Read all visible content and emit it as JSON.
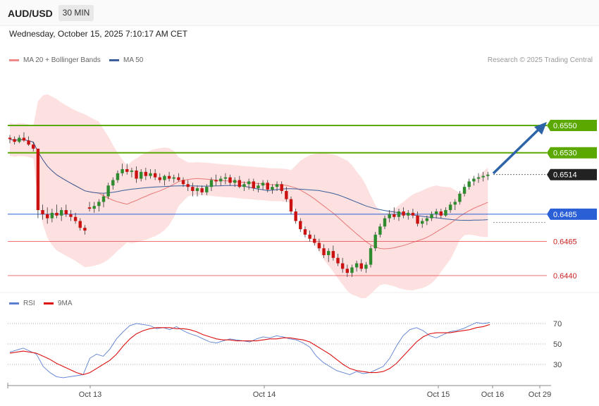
{
  "header": {
    "symbol": "AUD/USD",
    "timeframe": "30 MIN",
    "datetime": "Wednesday, October 15, 2025 7:10:17 AM CET",
    "credit": "Research © 2025 Trading Central"
  },
  "legend": {
    "ma20_label": "MA 20 + Bollinger Bands",
    "ma50_label": "MA 50",
    "rsi_label": "RSI",
    "rsi_ma_label": "9MA"
  },
  "colors": {
    "bull": "#2e8b2e",
    "bear": "#cc1111",
    "band_fill": "#fde0e0",
    "ma20": "#e87878",
    "ma50": "#3a5f9a",
    "resistance": "#5aa800",
    "pivot": "#2a5fd6",
    "support": "#e84040",
    "current": "#222222",
    "arrow": "#2d64a8",
    "rsi": "#5b7fd0",
    "rsi_ma": "#dd1010"
  },
  "chart_data": [
    {
      "type": "candlestick",
      "title": "AUD/USD",
      "interval": "30 MIN",
      "y_unit": "price",
      "y_range": [
        0.643,
        0.6575
      ],
      "x_ticks": [
        "Oct 13",
        "Oct 14",
        "Oct 15",
        "Oct 16",
        "Oct 29"
      ],
      "candles_ohlc": [
        [
          0.6541,
          0.6543,
          0.6537,
          0.654
        ],
        [
          0.654,
          0.6542,
          0.6536,
          0.6538
        ],
        [
          0.6538,
          0.6543,
          0.6537,
          0.6541
        ],
        [
          0.6541,
          0.6545,
          0.6538,
          0.6539
        ],
        [
          0.6539,
          0.6542,
          0.6535,
          0.6536
        ],
        [
          0.6536,
          0.6538,
          0.6531,
          0.6533
        ],
        [
          0.6533,
          0.6533,
          0.6482,
          0.6488
        ],
        [
          0.6488,
          0.6492,
          0.6481,
          0.6485
        ],
        [
          0.6485,
          0.649,
          0.6478,
          0.6482
        ],
        [
          0.6482,
          0.6489,
          0.6479,
          0.6486
        ],
        [
          0.6486,
          0.6492,
          0.6482,
          0.6484
        ],
        [
          0.6484,
          0.649,
          0.648,
          0.6488
        ],
        [
          0.6488,
          0.6492,
          0.6483,
          0.6485
        ],
        [
          0.6485,
          0.6488,
          0.648,
          0.6483
        ],
        [
          0.6483,
          0.6486,
          0.6478,
          0.648
        ],
        [
          0.648,
          0.6482,
          0.6473,
          0.6475
        ],
        [
          0.6475,
          0.6477,
          0.647,
          0.6473
        ],
        [
          0.649,
          0.6494,
          0.6487,
          0.6489
        ],
        [
          0.6489,
          0.6494,
          0.6486,
          0.6491
        ],
        [
          0.6491,
          0.6496,
          0.6487,
          0.6494
        ],
        [
          0.6494,
          0.65,
          0.649,
          0.6498
        ],
        [
          0.6498,
          0.6508,
          0.6496,
          0.6506
        ],
        [
          0.6506,
          0.6512,
          0.6503,
          0.651
        ],
        [
          0.651,
          0.6517,
          0.6508,
          0.6515
        ],
        [
          0.6515,
          0.6522,
          0.6513,
          0.6518
        ],
        [
          0.6518,
          0.6522,
          0.6514,
          0.6516
        ],
        [
          0.6516,
          0.6519,
          0.6512,
          0.6517
        ],
        [
          0.6517,
          0.652,
          0.6508,
          0.6511
        ],
        [
          0.6511,
          0.6518,
          0.6509,
          0.6516
        ],
        [
          0.6516,
          0.6519,
          0.651,
          0.6513
        ],
        [
          0.6513,
          0.6518,
          0.6511,
          0.6515
        ],
        [
          0.6515,
          0.6518,
          0.651,
          0.6512
        ],
        [
          0.6512,
          0.6515,
          0.6508,
          0.651
        ],
        [
          0.651,
          0.6514,
          0.6506,
          0.6513
        ],
        [
          0.6513,
          0.6516,
          0.6509,
          0.6511
        ],
        [
          0.6511,
          0.6514,
          0.6508,
          0.6512
        ],
        [
          0.6512,
          0.6515,
          0.6509,
          0.651
        ],
        [
          0.651,
          0.6512,
          0.6505,
          0.6507
        ],
        [
          0.6507,
          0.651,
          0.6502,
          0.6505
        ],
        [
          0.6505,
          0.6508,
          0.6498,
          0.6502
        ],
        [
          0.6502,
          0.6506,
          0.6498,
          0.6504
        ],
        [
          0.6504,
          0.6506,
          0.6499,
          0.6501
        ],
        [
          0.6501,
          0.6507,
          0.6499,
          0.6505
        ],
        [
          0.6505,
          0.6512,
          0.6502,
          0.651
        ],
        [
          0.651,
          0.6514,
          0.6506,
          0.6509
        ],
        [
          0.6509,
          0.6513,
          0.6506,
          0.6511
        ],
        [
          0.6511,
          0.6515,
          0.6507,
          0.6512
        ],
        [
          0.6512,
          0.6514,
          0.6506,
          0.6508
        ],
        [
          0.6508,
          0.6512,
          0.6505,
          0.651
        ],
        [
          0.651,
          0.6513,
          0.6504,
          0.6505
        ],
        [
          0.6505,
          0.6509,
          0.6502,
          0.6507
        ],
        [
          0.6507,
          0.6511,
          0.6503,
          0.6509
        ],
        [
          0.6509,
          0.6511,
          0.6502,
          0.6504
        ],
        [
          0.6504,
          0.6508,
          0.6501,
          0.6506
        ],
        [
          0.6506,
          0.651,
          0.6503,
          0.6508
        ],
        [
          0.6508,
          0.651,
          0.6501,
          0.6503
        ],
        [
          0.6503,
          0.6507,
          0.65,
          0.6505
        ],
        [
          0.6505,
          0.6509,
          0.6502,
          0.6507
        ],
        [
          0.6507,
          0.6509,
          0.65,
          0.6502
        ],
        [
          0.6502,
          0.6505,
          0.6494,
          0.6496
        ],
        [
          0.6496,
          0.6498,
          0.6485,
          0.6487
        ],
        [
          0.6487,
          0.6489,
          0.6478,
          0.648
        ],
        [
          0.648,
          0.6482,
          0.6472,
          0.6474
        ],
        [
          0.6474,
          0.6476,
          0.6468,
          0.647
        ],
        [
          0.647,
          0.6473,
          0.6465,
          0.6467
        ],
        [
          0.6467,
          0.647,
          0.6462,
          0.6464
        ],
        [
          0.6464,
          0.6467,
          0.6458,
          0.646
        ],
        [
          0.646,
          0.6463,
          0.6453,
          0.6455
        ],
        [
          0.6455,
          0.646,
          0.645,
          0.6458
        ],
        [
          0.6458,
          0.6462,
          0.6451,
          0.6453
        ],
        [
          0.6453,
          0.6456,
          0.6447,
          0.6449
        ],
        [
          0.6449,
          0.6453,
          0.6442,
          0.6445
        ],
        [
          0.6445,
          0.6448,
          0.6439,
          0.6442
        ],
        [
          0.6442,
          0.6448,
          0.6439,
          0.6446
        ],
        [
          0.6446,
          0.6451,
          0.6443,
          0.6449
        ],
        [
          0.6449,
          0.6452,
          0.6443,
          0.6445
        ],
        [
          0.6445,
          0.645,
          0.6442,
          0.6448
        ],
        [
          0.6448,
          0.6462,
          0.6446,
          0.646
        ],
        [
          0.646,
          0.6472,
          0.6458,
          0.647
        ],
        [
          0.647,
          0.6478,
          0.6468,
          0.6476
        ],
        [
          0.6476,
          0.6484,
          0.6474,
          0.6482
        ],
        [
          0.6482,
          0.6488,
          0.6479,
          0.6485
        ],
        [
          0.6485,
          0.649,
          0.6481,
          0.6483
        ],
        [
          0.6483,
          0.6489,
          0.648,
          0.6487
        ],
        [
          0.6487,
          0.649,
          0.6482,
          0.6484
        ],
        [
          0.6484,
          0.6488,
          0.6481,
          0.6486
        ],
        [
          0.6486,
          0.6489,
          0.6482,
          0.6484
        ],
        [
          0.6484,
          0.6487,
          0.6476,
          0.6478
        ],
        [
          0.6478,
          0.6482,
          0.6475,
          0.648
        ],
        [
          0.648,
          0.6484,
          0.6477,
          0.6482
        ],
        [
          0.6482,
          0.6487,
          0.648,
          0.6485
        ],
        [
          0.6485,
          0.6489,
          0.6482,
          0.6487
        ],
        [
          0.6487,
          0.6489,
          0.6482,
          0.6484
        ],
        [
          0.6484,
          0.649,
          0.6483,
          0.6488
        ],
        [
          0.6488,
          0.6494,
          0.6486,
          0.6492
        ],
        [
          0.6492,
          0.6496,
          0.6488,
          0.6494
        ],
        [
          0.6494,
          0.6502,
          0.6492,
          0.65
        ],
        [
          0.65,
          0.6507,
          0.6498,
          0.6505
        ],
        [
          0.6505,
          0.6511,
          0.6503,
          0.6509
        ],
        [
          0.6509,
          0.6513,
          0.6506,
          0.6511
        ],
        [
          0.6511,
          0.6515,
          0.6508,
          0.6512
        ],
        [
          0.6512,
          0.6516,
          0.6509,
          0.6513
        ],
        [
          0.6513,
          0.6516,
          0.651,
          0.6514
        ]
      ]
    },
    {
      "type": "line",
      "title": "RSI",
      "y_ticks": [
        30,
        50,
        70
      ],
      "series": [
        {
          "name": "RSI",
          "values": [
            42,
            44,
            46,
            43,
            40,
            28,
            22,
            18,
            17,
            18,
            19,
            20,
            36,
            40,
            38,
            45,
            55,
            62,
            68,
            70,
            69,
            68,
            65,
            66,
            64,
            67,
            63,
            60,
            58,
            55,
            52,
            51,
            53,
            55,
            54,
            53,
            52,
            55,
            57,
            56,
            58,
            57,
            55,
            54,
            51,
            47,
            38,
            32,
            28,
            24,
            22,
            20,
            23,
            21,
            22,
            25,
            28,
            36,
            48,
            58,
            64,
            66,
            63,
            58,
            56,
            59,
            62,
            63,
            65,
            68,
            71,
            70,
            71
          ]
        },
        {
          "name": "9MA",
          "values": [
            41,
            42,
            43,
            42,
            41,
            38,
            35,
            31,
            28,
            25,
            22,
            20,
            22,
            26,
            30,
            34,
            40,
            48,
            55,
            60,
            63,
            65,
            66,
            66,
            66,
            65,
            65,
            64,
            62,
            59,
            57,
            55,
            54,
            54,
            53,
            53,
            53,
            53,
            54,
            55,
            55,
            56,
            56,
            55,
            54,
            52,
            48,
            44,
            40,
            35,
            30,
            26,
            24,
            23,
            22,
            22,
            23,
            26,
            31,
            38,
            45,
            52,
            57,
            60,
            61,
            61,
            61,
            62,
            63,
            64,
            66,
            67,
            69
          ]
        }
      ]
    }
  ],
  "levels": [
    {
      "value": "0.6550",
      "kind": "resistance"
    },
    {
      "value": "0.6530",
      "kind": "resistance"
    },
    {
      "value": "0.6514",
      "kind": "current"
    },
    {
      "value": "0.6485",
      "kind": "pivot"
    },
    {
      "value": "0.6465",
      "kind": "support"
    },
    {
      "value": "0.6440",
      "kind": "support"
    }
  ],
  "rsi_levels": [
    "70",
    "50",
    "30"
  ]
}
